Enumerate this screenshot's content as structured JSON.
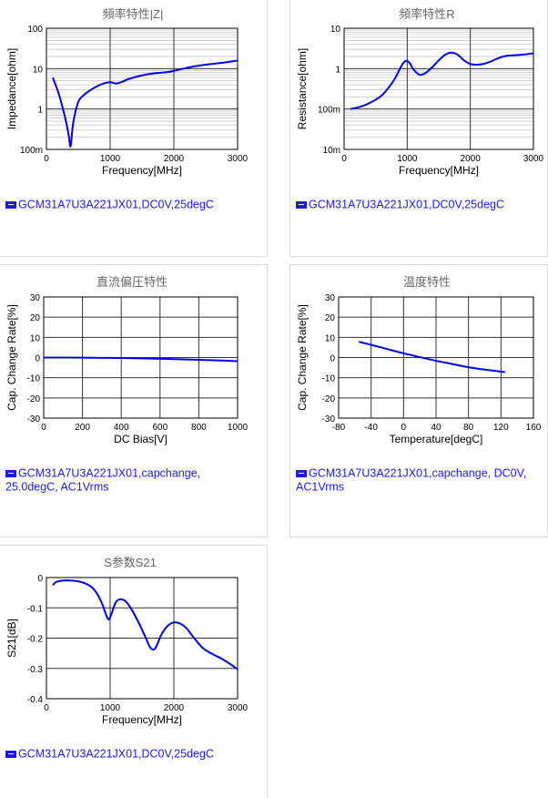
{
  "colors": {
    "curve": "#0000ee",
    "legend": "#1a1ae6",
    "grid_major": "#333333",
    "grid_minor": "#d0d0d0"
  },
  "chart_data": [
    {
      "type": "line",
      "title": "頻率特性|Z|",
      "xlabel": "Frequency[MHz]",
      "ylabel": "Impedance[ohm]",
      "xscale": "linear",
      "yscale": "log",
      "xlim": [
        0,
        3000
      ],
      "ylim": [
        0.1,
        100
      ],
      "xticks": [
        "0",
        "1000",
        "2000",
        "3000"
      ],
      "yticks": [
        "100m",
        "1",
        "10",
        "100"
      ],
      "grid": true,
      "legend": "GCM31A7U3A221JX01,DC0V,25degC",
      "series": [
        {
          "x": [
            100,
            200,
            300,
            350,
            380,
            420,
            500,
            600,
            700,
            800,
            900,
            1000,
            1100,
            1200,
            1300,
            1500,
            1700,
            1900,
            2100,
            2300,
            2500,
            2700,
            2900,
            3000
          ],
          "y": [
            6,
            2.2,
            0.55,
            0.22,
            0.12,
            0.45,
            1.5,
            2.3,
            3.0,
            3.7,
            4.3,
            4.6,
            4.3,
            4.8,
            5.6,
            6.8,
            7.7,
            8.2,
            9.6,
            11.2,
            12.5,
            13.6,
            15.0,
            15.8
          ]
        }
      ]
    },
    {
      "type": "line",
      "title": "頻率特性R",
      "xlabel": "Frequency[MHz]",
      "ylabel": "Resistance[ohm]",
      "xscale": "linear",
      "yscale": "log",
      "xlim": [
        0,
        3000
      ],
      "ylim": [
        0.01,
        10
      ],
      "xticks": [
        "0",
        "1000",
        "2000",
        "3000"
      ],
      "yticks": [
        "10m",
        "100m",
        "1",
        "10"
      ],
      "grid": true,
      "legend": "GCM31A7U3A221JX01,DC0V,25degC",
      "series": [
        {
          "x": [
            100,
            200,
            300,
            400,
            500,
            600,
            700,
            800,
            900,
            950,
            1000,
            1050,
            1100,
            1200,
            1300,
            1400,
            1500,
            1600,
            1700,
            1800,
            1900,
            2000,
            2100,
            2200,
            2300,
            2400,
            2500,
            2600,
            2800,
            3000
          ],
          "y": [
            0.1,
            0.108,
            0.12,
            0.14,
            0.17,
            0.22,
            0.33,
            0.55,
            1.1,
            1.45,
            1.55,
            1.3,
            0.95,
            0.7,
            0.8,
            1.1,
            1.6,
            2.2,
            2.5,
            2.2,
            1.6,
            1.3,
            1.25,
            1.3,
            1.45,
            1.7,
            1.95,
            2.1,
            2.2,
            2.4
          ]
        }
      ]
    },
    {
      "type": "line",
      "title": "直流偏圧特性",
      "xlabel": "DC Bias[V]",
      "ylabel": "Cap. Change Rate[%]",
      "xscale": "linear",
      "yscale": "linear",
      "xlim": [
        0,
        1000
      ],
      "ylim": [
        -30,
        30
      ],
      "xticks": [
        "0",
        "200",
        "400",
        "600",
        "800",
        "1000"
      ],
      "yticks": [
        "-30",
        "-20",
        "-10",
        "0",
        "10",
        "20",
        "30"
      ],
      "grid": true,
      "legend": "GCM31A7U3A221JX01,capchange, 25.0degC, AC1Vrms",
      "series": [
        {
          "x": [
            0,
            100,
            200,
            300,
            400,
            500,
            600,
            700,
            800,
            900,
            1000
          ],
          "y": [
            0,
            0,
            -0.05,
            -0.15,
            -0.25,
            -0.4,
            -0.6,
            -0.85,
            -1.1,
            -1.4,
            -1.8
          ]
        }
      ]
    },
    {
      "type": "line",
      "title": "温度特性",
      "xlabel": "Temperature[degC]",
      "ylabel": "Cap. Change Rate[%]",
      "xscale": "linear",
      "yscale": "linear",
      "xlim": [
        -80,
        160
      ],
      "ylim": [
        -30,
        30
      ],
      "xticks": [
        "-80",
        "-40",
        "0",
        "40",
        "80",
        "120",
        "160"
      ],
      "yticks": [
        "-30",
        "-20",
        "-10",
        "0",
        "10",
        "20",
        "30"
      ],
      "grid": true,
      "legend": "GCM31A7U3A221JX01,capchange, DC0V, AC1Vrms",
      "series": [
        {
          "x": [
            -55,
            -40,
            -20,
            0,
            20,
            40,
            60,
            80,
            100,
            125
          ],
          "y": [
            7.8,
            6.3,
            4.2,
            2.1,
            0.2,
            -1.6,
            -3.2,
            -4.8,
            -6.0,
            -7.2
          ]
        }
      ]
    },
    {
      "type": "line",
      "title": "S参数S21",
      "xlabel": "Frequency[MHz]",
      "ylabel": "S21[dB]",
      "xscale": "linear",
      "yscale": "linear",
      "xlim": [
        0,
        3000
      ],
      "ylim": [
        -0.4,
        0
      ],
      "xticks": [
        "0",
        "1000",
        "2000",
        "3000"
      ],
      "yticks": [
        "-0.4",
        "-0.3",
        "-0.2",
        "-0.1",
        "0"
      ],
      "grid": true,
      "legend": "GCM31A7U3A221JX01,DC0V,25degC",
      "series": [
        {
          "x": [
            100,
            150,
            250,
            400,
            550,
            700,
            800,
            880,
            940,
            980,
            1030,
            1080,
            1150,
            1250,
            1350,
            1450,
            1550,
            1620,
            1680,
            1730,
            1800,
            1900,
            2000,
            2100,
            2200,
            2300,
            2450,
            2600,
            2750,
            2900,
            3000
          ],
          "y": [
            -0.025,
            -0.015,
            -0.01,
            -0.01,
            -0.015,
            -0.03,
            -0.055,
            -0.09,
            -0.125,
            -0.138,
            -0.115,
            -0.085,
            -0.072,
            -0.08,
            -0.11,
            -0.15,
            -0.195,
            -0.228,
            -0.238,
            -0.225,
            -0.19,
            -0.16,
            -0.148,
            -0.152,
            -0.168,
            -0.195,
            -0.232,
            -0.252,
            -0.268,
            -0.288,
            -0.303
          ]
        }
      ]
    }
  ]
}
